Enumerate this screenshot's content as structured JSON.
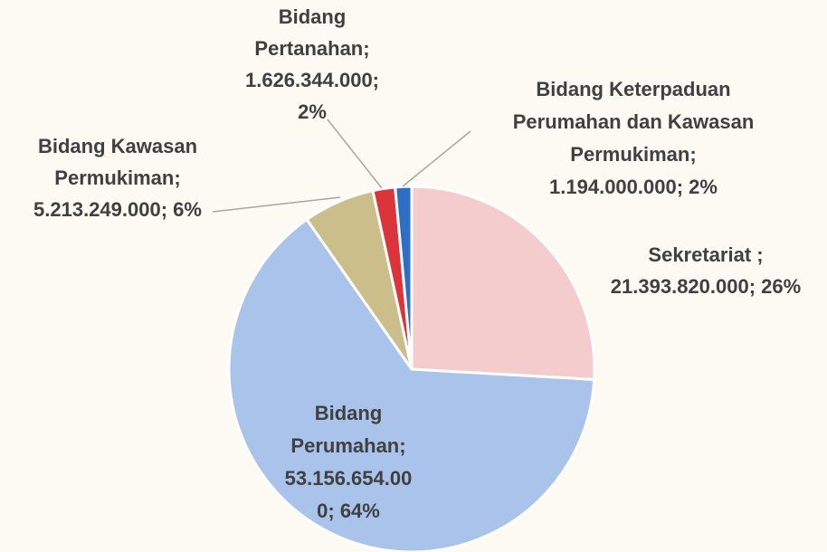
{
  "chart_data": {
    "type": "pie",
    "categories": [
      "Sekretariat",
      "Bidang Perumahan",
      "Bidang Kawasan Permukiman",
      "Bidang Pertanahan",
      "Bidang Keterpaduan Perumahan dan Kawasan Permukiman"
    ],
    "values": [
      21393820000,
      53156654000,
      5213249000,
      1626344000,
      1194000000
    ],
    "value_labels": [
      [
        "Sekretariat ;",
        "21.393.820.000; 26%"
      ],
      [
        "Bidang",
        "Perumahan;",
        "53.156.654.00",
        "0; 64%"
      ],
      [
        "Bidang Kawasan",
        "Permukiman;",
        "5.213.249.000; 6%"
      ],
      [
        "Bidang",
        "Pertanahan;",
        "1.626.344.000;",
        "2%"
      ],
      [
        "Bidang Keterpaduan",
        "Perumahan dan Kawasan",
        "Permukiman;",
        "1.194.000.000; 2%"
      ]
    ],
    "colors": [
      "#f4cccd",
      "#a9c3ea",
      "#cbbe8b",
      "#dc343b",
      "#2e6ec4"
    ]
  }
}
